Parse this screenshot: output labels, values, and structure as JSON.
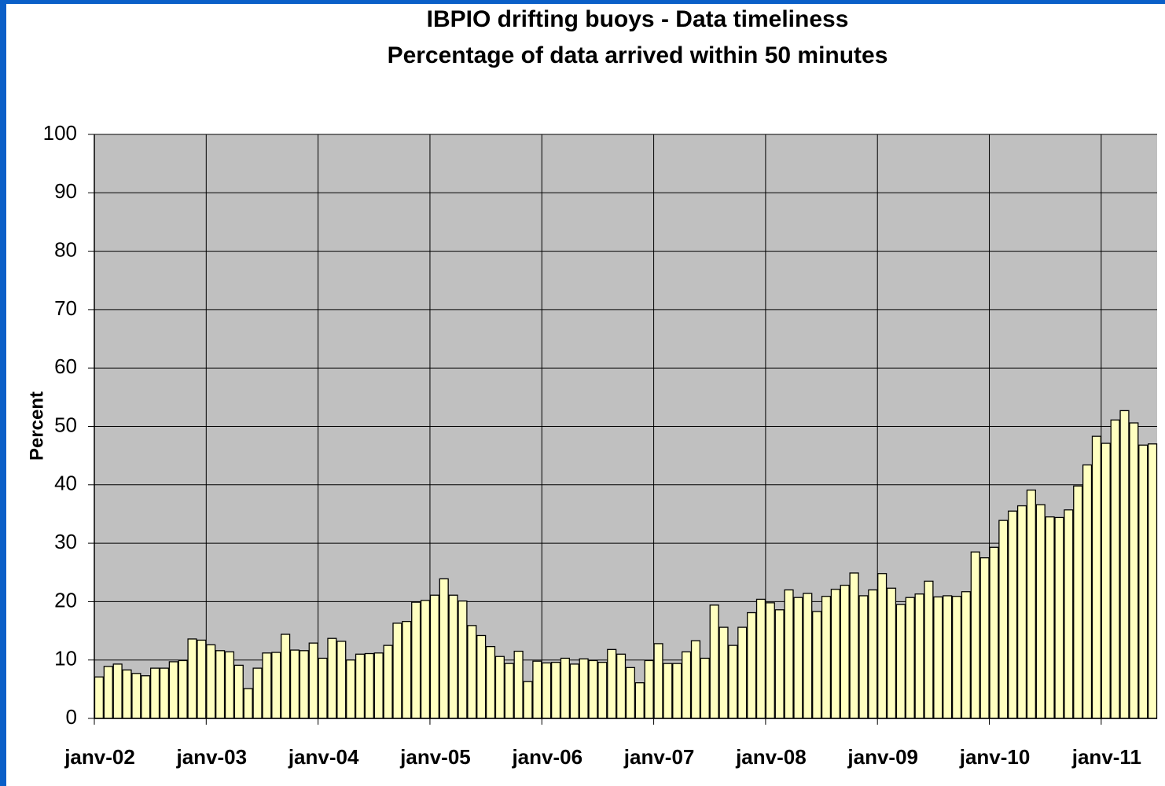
{
  "chart_data": {
    "type": "bar",
    "title": "IBPIO drifting buoys - Data timeliness",
    "subtitle": "Percentage of data arrived within 50 minutes",
    "y_label": "Percent",
    "categories": [
      "janv-02",
      null,
      null,
      null,
      null,
      null,
      null,
      null,
      null,
      null,
      null,
      null,
      "janv-03",
      null,
      null,
      null,
      null,
      null,
      null,
      null,
      null,
      null,
      null,
      null,
      "janv-04",
      null,
      null,
      null,
      null,
      null,
      null,
      null,
      null,
      null,
      null,
      null,
      "janv-05",
      null,
      null,
      null,
      null,
      null,
      null,
      null,
      null,
      null,
      null,
      null,
      "janv-06",
      null,
      null,
      null,
      null,
      null,
      null,
      null,
      null,
      null,
      null,
      null,
      "janv-07",
      null,
      null,
      null,
      null,
      null,
      null,
      null,
      null,
      null,
      null,
      null,
      "janv-08",
      null,
      null,
      null,
      null,
      null,
      null,
      null,
      null,
      null,
      null,
      null,
      "janv-09",
      null,
      null,
      null,
      null,
      null,
      null,
      null,
      null,
      null,
      null,
      null,
      "janv-10",
      null,
      null,
      null,
      null,
      null,
      null,
      null,
      null,
      null,
      null,
      null,
      "janv-11",
      null,
      null,
      null,
      null,
      null
    ],
    "values": [
      7.1,
      8.9,
      9.3,
      8.3,
      7.7,
      7.3,
      8.6,
      8.6,
      9.7,
      9.9,
      13.6,
      13.4,
      12.6,
      11.6,
      11.4,
      9.1,
      5.1,
      8.6,
      11.2,
      11.3,
      14.4,
      11.7,
      11.6,
      12.9,
      10.3,
      13.7,
      13.2,
      10.0,
      11.0,
      11.1,
      11.2,
      12.5,
      16.3,
      16.6,
      19.9,
      20.2,
      21.1,
      23.9,
      21.1,
      20.1,
      15.9,
      14.2,
      12.3,
      10.6,
      9.4,
      11.5,
      6.3,
      9.8,
      9.5,
      9.6,
      10.3,
      9.3,
      10.2,
      9.9,
      9.6,
      11.8,
      11.0,
      8.7,
      6.1,
      9.9,
      12.8,
      9.4,
      9.4,
      11.4,
      13.3,
      10.3,
      19.4,
      15.6,
      12.5,
      15.6,
      18.1,
      20.4,
      19.8,
      18.6,
      22.0,
      20.7,
      21.4,
      18.3,
      20.9,
      22.1,
      22.8,
      24.9,
      21.0,
      22.0,
      24.8,
      22.3,
      19.5,
      20.7,
      21.3,
      23.5,
      20.8,
      21.0,
      20.9,
      21.7,
      28.5,
      27.5,
      29.3,
      33.9,
      35.5,
      36.4,
      39.1,
      36.6,
      34.5,
      34.4,
      35.7,
      39.8,
      43.4,
      48.3,
      47.1,
      51.1,
      52.7,
      50.6,
      46.8,
      47.0
    ],
    "color": "#ffffc0",
    "ylim": [
      0,
      100
    ],
    "yticks": [
      0,
      10,
      20,
      30,
      40,
      50,
      60,
      70,
      80,
      90,
      100
    ],
    "grid": true
  }
}
